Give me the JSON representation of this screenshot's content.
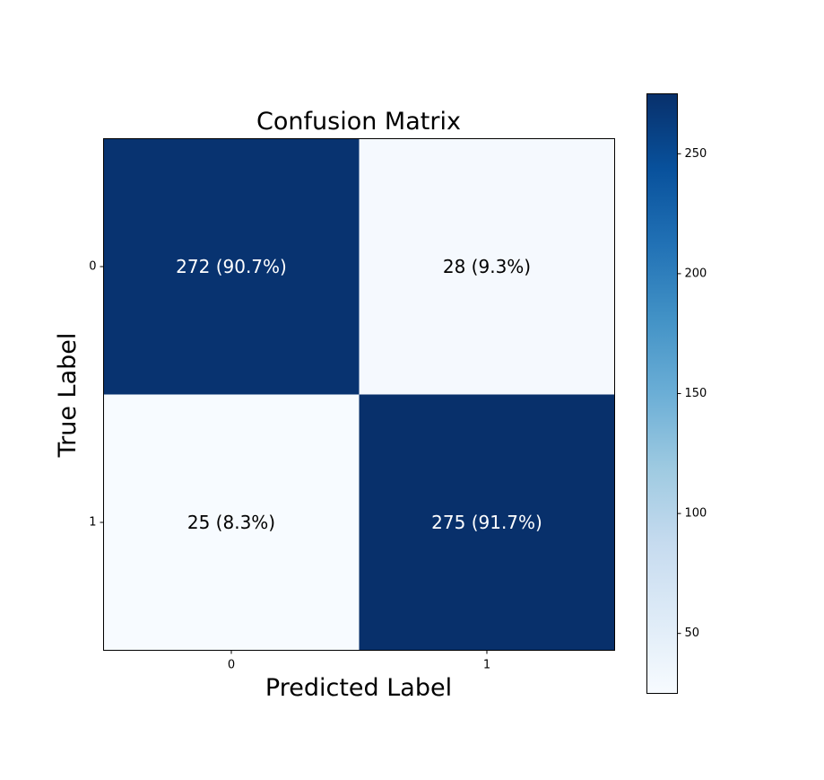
{
  "chart_data": {
    "type": "heatmap",
    "title": "Confusion Matrix",
    "xlabel": "Predicted Label",
    "ylabel": "True Label",
    "x_categories": [
      "0",
      "1"
    ],
    "y_categories": [
      "0",
      "1"
    ],
    "values": [
      [
        272,
        28
      ],
      [
        25,
        275
      ]
    ],
    "cell_labels": [
      [
        "272 (90.7%)",
        "28 (9.3%)"
      ],
      [
        "25 (8.3%)",
        "275 (91.7%)"
      ]
    ],
    "colormap": "Blues",
    "colorbar": {
      "range": [
        25,
        275
      ],
      "ticks": [
        50,
        100,
        150,
        200,
        250
      ],
      "tick_labels": [
        "50",
        "100",
        "150",
        "200",
        "250"
      ]
    },
    "colors": {
      "low": "#f7fbff",
      "high": "#08306b",
      "text_on_dark": "#ffffff",
      "text_on_light": "#000000"
    }
  }
}
